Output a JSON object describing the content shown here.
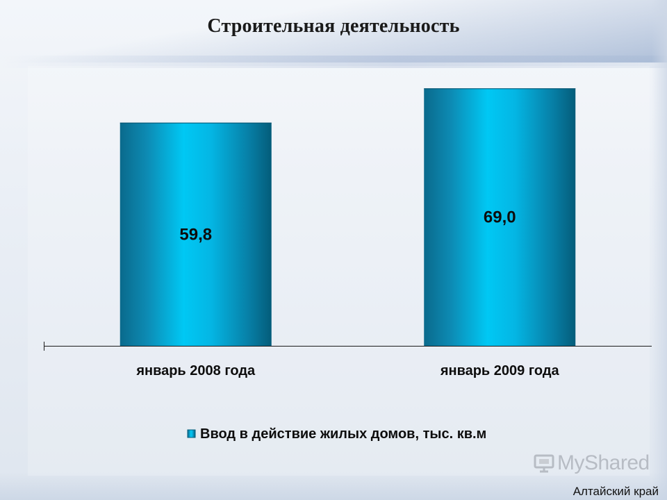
{
  "page": {
    "title": "Строительная деятельность",
    "region": "Алтайский край",
    "watermark": "MyShared"
  },
  "chart_data": {
    "type": "bar",
    "title": "",
    "categories": [
      "январь 2008 года",
      "январь 2009 года"
    ],
    "series": [
      {
        "name": "Ввод в действие жилых домов, тыс. кв.м",
        "values": [
          59.8,
          69.0
        ],
        "labels": [
          "59,8",
          "69,0"
        ],
        "color": "#14a6d4"
      }
    ],
    "xlabel": "",
    "ylabel": "",
    "ylim": [
      0,
      75
    ],
    "grid": false,
    "legend": "bottom",
    "bar_style": "cylinder-gradient",
    "colors": {
      "bar_light": "#00c8f4",
      "bar_mid": "#12a0cc",
      "bar_dark": "#045c7a",
      "axis": "#1a1a1a"
    }
  }
}
